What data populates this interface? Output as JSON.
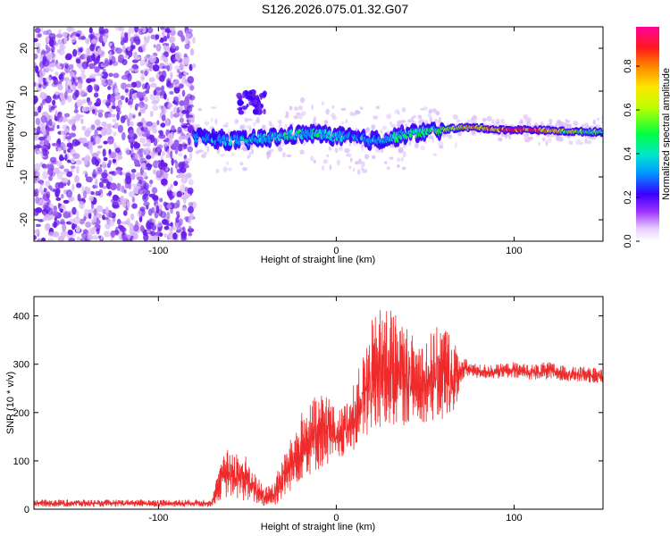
{
  "title": "S126.2026.075.01.32.G07",
  "colors": {
    "snr_line": "#ee2a2a",
    "spectro_scatter": "#6a1de8",
    "spectro_light": "#d8b8f8"
  },
  "chart_data": [
    {
      "type": "heatmap",
      "name": "spectrogram",
      "title": "",
      "xlabel": "Height of straight line (km)",
      "ylabel": "Frequency (Hz)",
      "xlim": [
        -170,
        150
      ],
      "ylim": [
        -25,
        25
      ],
      "xticks": [
        -100,
        0,
        100
      ],
      "xtick_labels": [
        "-100",
        "0",
        "100"
      ],
      "yticks": [
        -20,
        -10,
        0,
        10,
        20
      ],
      "ytick_labels": [
        "-20",
        "-10",
        "0",
        "10",
        "20"
      ],
      "noise_region_x": [
        -170,
        -80
      ],
      "ridge": {
        "x": [
          -80,
          -70,
          -60,
          -50,
          -40,
          -30,
          -20,
          -10,
          0,
          10,
          20,
          30,
          40,
          50,
          60,
          70,
          80,
          90,
          100,
          110,
          120,
          130,
          140,
          150
        ],
        "freq": [
          -0.5,
          -1.0,
          -1.5,
          -1.5,
          -1.0,
          -0.5,
          0.0,
          0.0,
          -0.5,
          -1.0,
          -1.5,
          -1.0,
          0.0,
          0.5,
          1.0,
          1.5,
          1.5,
          1.0,
          1.0,
          1.0,
          0.8,
          0.6,
          0.5,
          0.5
        ],
        "amplitude": [
          0.35,
          0.35,
          0.4,
          0.4,
          0.45,
          0.45,
          0.45,
          0.45,
          0.45,
          0.4,
          0.4,
          0.45,
          0.5,
          0.55,
          0.65,
          0.75,
          0.8,
          0.85,
          0.95,
          0.9,
          0.8,
          0.7,
          0.6,
          0.55
        ]
      },
      "side_feature": {
        "x": [
          -55,
          -40
        ],
        "freq": [
          5,
          10
        ]
      }
    },
    {
      "type": "colorbar",
      "name": "amplitude-colorbar",
      "label": "Normalized spectral amplitude",
      "range": [
        0,
        0.98
      ],
      "ticks": [
        0.0,
        0.2,
        0.4,
        0.6,
        0.8
      ],
      "tick_labels": [
        "0.0",
        "0.2",
        "0.4",
        "0.6",
        "0.8"
      ]
    },
    {
      "type": "line",
      "name": "snr",
      "title": "",
      "xlabel": "Height of straight line (km)",
      "ylabel": "SNR (10 * v/v)",
      "xlim": [
        -170,
        150
      ],
      "ylim": [
        0,
        440
      ],
      "xticks": [
        -100,
        0,
        100
      ],
      "xtick_labels": [
        "-100",
        "0",
        "100"
      ],
      "yticks": [
        0,
        100,
        200,
        300,
        400
      ],
      "ytick_labels": [
        "0",
        "100",
        "200",
        "300",
        "400"
      ],
      "envelope": {
        "x": [
          -170,
          -140,
          -110,
          -80,
          -70,
          -65,
          -60,
          -55,
          -50,
          -45,
          -40,
          -35,
          -30,
          -25,
          -20,
          -15,
          -10,
          -5,
          0,
          5,
          10,
          15,
          20,
          25,
          30,
          35,
          40,
          45,
          50,
          55,
          60,
          65,
          70,
          75,
          80,
          90,
          100,
          110,
          120,
          130,
          140,
          150
        ],
        "low": [
          5,
          5,
          5,
          5,
          5,
          20,
          25,
          20,
          15,
          10,
          5,
          5,
          20,
          40,
          60,
          70,
          80,
          90,
          95,
          110,
          120,
          140,
          150,
          160,
          170,
          170,
          175,
          180,
          180,
          180,
          175,
          175,
          260,
          275,
          270,
          270,
          270,
          268,
          268,
          265,
          262,
          260
        ],
        "high": [
          20,
          20,
          20,
          20,
          22,
          100,
          130,
          120,
          110,
          70,
          45,
          60,
          110,
          150,
          200,
          220,
          240,
          250,
          200,
          220,
          260,
          320,
          390,
          420,
          430,
          400,
          380,
          350,
          360,
          370,
          395,
          360,
          320,
          305,
          300,
          300,
          305,
          300,
          305,
          295,
          295,
          290
        ]
      }
    }
  ]
}
